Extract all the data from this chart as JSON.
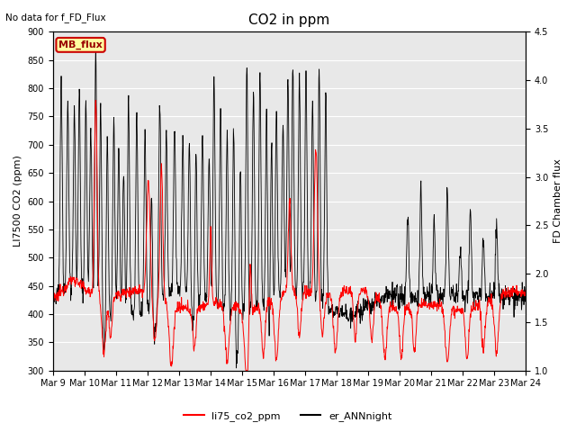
{
  "title": "CO2 in ppm",
  "top_left_text": "No data for f_FD_Flux",
  "legend_box_text": "MB_flux",
  "ylabel_left": "LI7500 CO2 (ppm)",
  "ylabel_right": "FD Chamber flux",
  "ylim_left": [
    300,
    900
  ],
  "ylim_right": [
    1.0,
    4.5
  ],
  "yticks_left": [
    300,
    350,
    400,
    450,
    500,
    550,
    600,
    650,
    700,
    750,
    800,
    850,
    900
  ],
  "yticks_right": [
    1.0,
    1.5,
    2.0,
    2.5,
    3.0,
    3.5,
    4.0,
    4.5
  ],
  "n_days": 15,
  "xtick_labels": [
    "Mar 9",
    "Mar 10",
    "Mar 11",
    "Mar 12",
    "Mar 13",
    "Mar 14",
    "Mar 15",
    "Mar 16",
    "Mar 17",
    "Mar 18",
    "Mar 19",
    "Mar 20",
    "Mar 21",
    "Mar 22",
    "Mar 23",
    "Mar 24"
  ],
  "line1_color": "#ff0000",
  "line2_color": "#000000",
  "line1_label": "li75_co2_ppm",
  "line2_label": "er_ANNnight",
  "bg_color": "#e8e8e8",
  "fig_bg_color": "#ffffff",
  "grid_color": "#ffffff",
  "title_fontsize": 11,
  "axis_fontsize": 8,
  "tick_fontsize": 7,
  "legend_fontsize": 8
}
